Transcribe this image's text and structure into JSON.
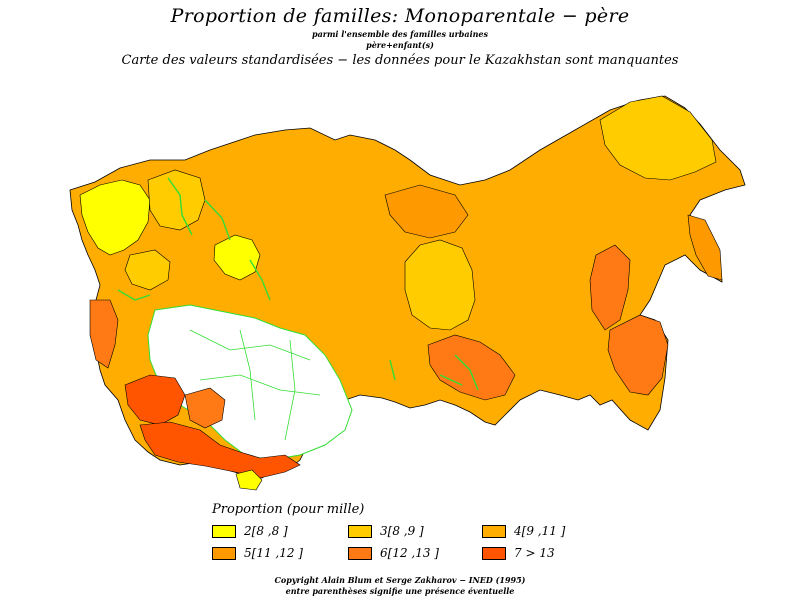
{
  "header": {
    "title": "Proportion de familles: Monoparentale − père",
    "subtitle1": "parmi l'ensemble des familles urbaines",
    "subtitle2": "père+enfant(s)",
    "caption": "Carte des valeurs standardisées − les données pour le Kazakhstan sont manquantes"
  },
  "legend": {
    "title": "Proportion (pour mille)",
    "items": [
      {
        "label": "2[8 ,8 ]",
        "color": "#ffff00"
      },
      {
        "label": "3[8 ,9 ]",
        "color": "#ffcc00"
      },
      {
        "label": "4[9 ,11 ]",
        "color": "#ffad00"
      },
      {
        "label": "5[11 ,12 ]",
        "color": "#ff9900"
      },
      {
        "label": "6[12 ,13 ]",
        "color": "#ff7a14"
      },
      {
        "label": "7  >  13",
        "color": "#ff5500"
      }
    ]
  },
  "footer": {
    "line1": "Copyright Alain Blum et Serge Zakharov − INED (1995)",
    "line2": "entre parenthèses signifie une présence éventuelle"
  },
  "colors": {
    "river": "#33dd33",
    "missing": "#ffffff",
    "border": "#000000"
  }
}
